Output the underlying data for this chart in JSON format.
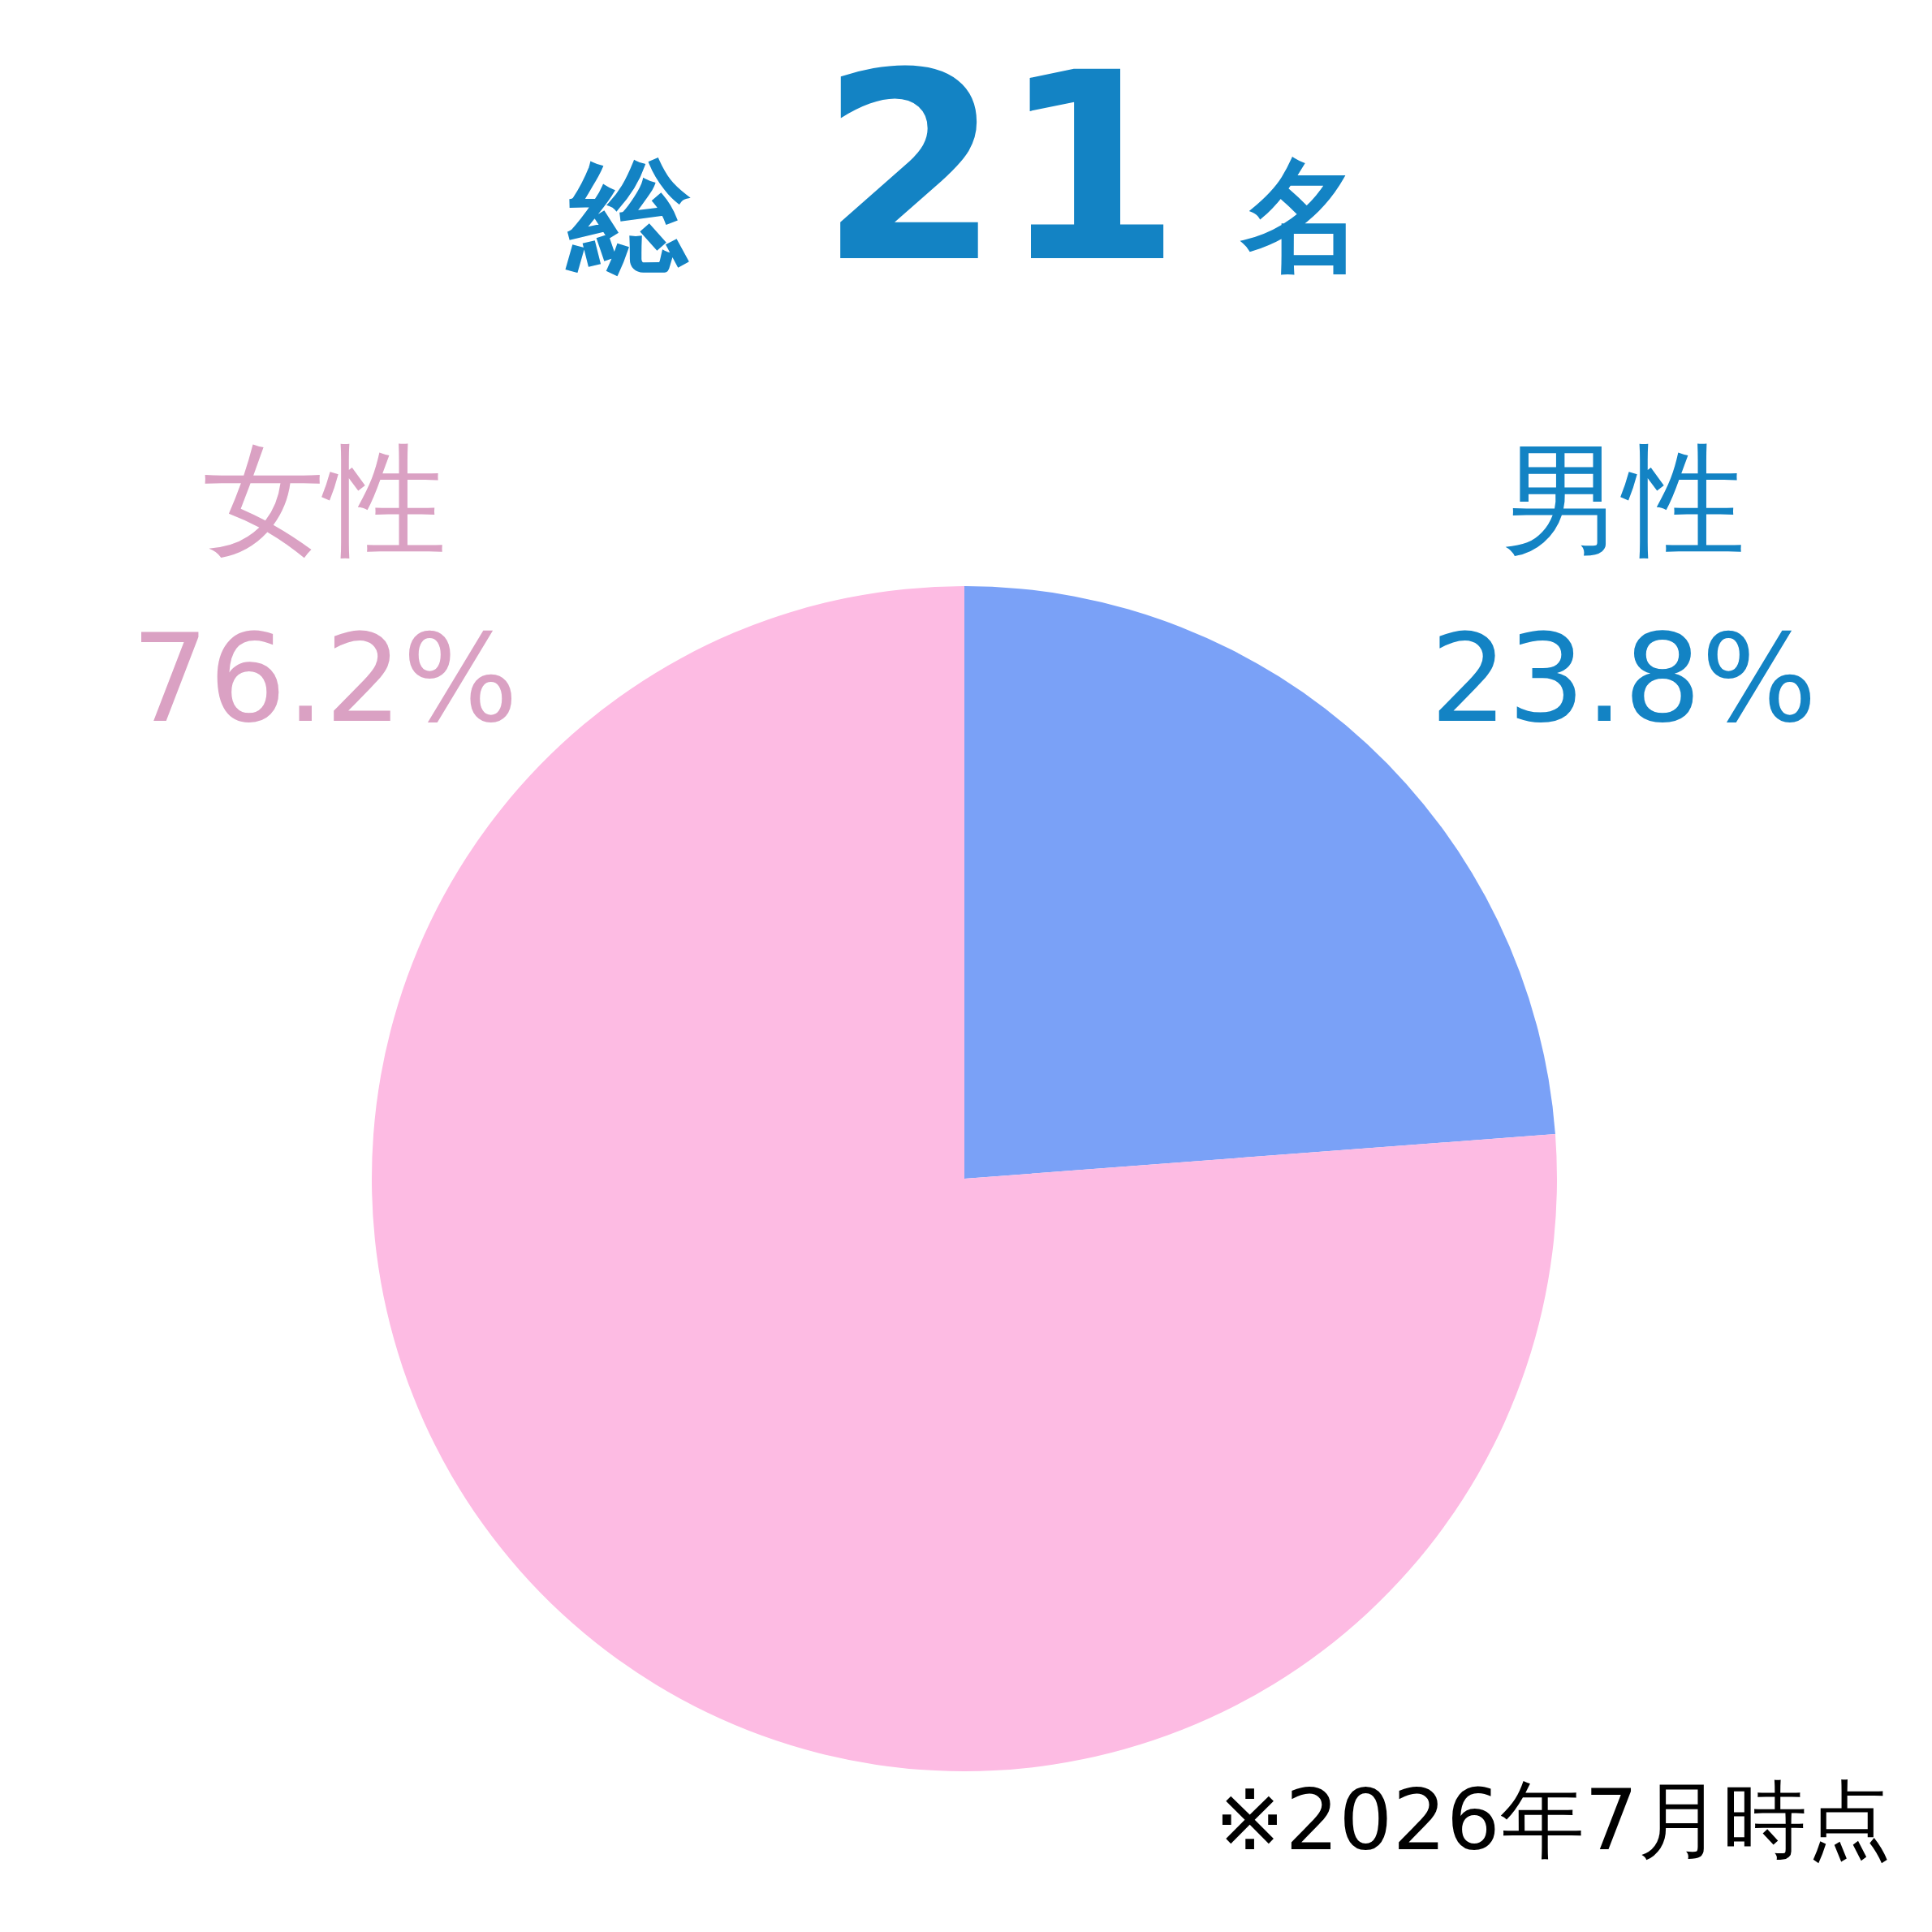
{
  "chart_data": {
    "type": "pie",
    "title": "総 21 名",
    "categories": [
      "男性",
      "女性"
    ],
    "values": [
      23.8,
      76.2
    ],
    "value_labels": [
      "23.8%",
      "76.2%"
    ],
    "colors": [
      "#7aa1f7",
      "#fdbbe3"
    ],
    "annotations": [
      "※2026年7月時点"
    ]
  }
}
